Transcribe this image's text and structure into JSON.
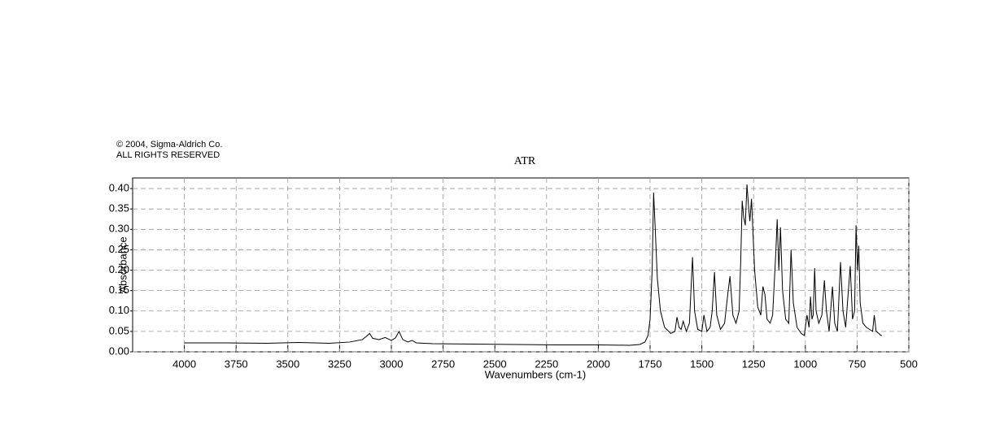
{
  "chart_data": {
    "type": "line",
    "title": "ATR",
    "copyright": [
      "© 2004, Sigma-Aldrich Co.",
      "ALL RIGHTS RESERVED"
    ],
    "x_label": "Wavenumbers (cm-1)",
    "y_label": "Absorbance",
    "xlim": [
      4250,
      500
    ],
    "ylim": [
      0,
      0.426
    ],
    "xticks": [
      4000,
      3750,
      3500,
      3250,
      3000,
      2750,
      2500,
      2250,
      2000,
      1750,
      1500,
      1250,
      1000,
      750,
      500
    ],
    "yticks": [
      {
        "value": 0,
        "label": "0.00"
      },
      0.05,
      {
        "value": 0.1,
        "label": "0.10"
      },
      0.15,
      {
        "value": 0.2,
        "label": "0.20"
      },
      0.25,
      {
        "value": 0.3,
        "label": "0.30"
      },
      0.35,
      {
        "value": 0.4,
        "label": "0.40"
      }
    ],
    "grid": true,
    "series": [
      {
        "name": "ATR",
        "color": "#000000",
        "x": [
          4000,
          3800,
          3600,
          3450,
          3300,
          3200,
          3140,
          3120,
          3105,
          3090,
          3060,
          3030,
          3000,
          2980,
          2963,
          2945,
          2920,
          2900,
          2880,
          2800,
          2600,
          2400,
          2200,
          2000,
          1850,
          1800,
          1775,
          1760,
          1750,
          1740,
          1733,
          1725,
          1715,
          1700,
          1680,
          1650,
          1630,
          1620,
          1610,
          1600,
          1590,
          1575,
          1560,
          1545,
          1535,
          1520,
          1500,
          1490,
          1475,
          1460,
          1450,
          1439,
          1428,
          1410,
          1390,
          1375,
          1364,
          1350,
          1335,
          1320,
          1312,
          1305,
          1298,
          1290,
          1282,
          1275,
          1268,
          1260,
          1245,
          1230,
          1215,
          1205,
          1195,
          1185,
          1170,
          1158,
          1148,
          1142,
          1136,
          1128,
          1120,
          1110,
          1095,
          1080,
          1069,
          1058,
          1040,
          1020,
          1005,
          992,
          982,
          975,
          968,
          962,
          955,
          948,
          935,
          920,
          908,
          898,
          885,
          869,
          858,
          845,
          830,
          818,
          805,
          795,
          783,
          772,
          762,
          755,
          748,
          742,
          735,
          722,
          705,
          690,
          675,
          667,
          658,
          645,
          635,
          630
        ],
        "values": [
          0.022,
          0.022,
          0.021,
          0.023,
          0.021,
          0.024,
          0.03,
          0.038,
          0.045,
          0.033,
          0.03,
          0.035,
          0.028,
          0.034,
          0.05,
          0.03,
          0.024,
          0.028,
          0.022,
          0.02,
          0.019,
          0.018,
          0.017,
          0.017,
          0.016,
          0.018,
          0.024,
          0.04,
          0.08,
          0.2,
          0.39,
          0.3,
          0.18,
          0.1,
          0.06,
          0.045,
          0.05,
          0.085,
          0.06,
          0.055,
          0.075,
          0.05,
          0.07,
          0.232,
          0.1,
          0.055,
          0.05,
          0.09,
          0.05,
          0.06,
          0.1,
          0.195,
          0.09,
          0.055,
          0.07,
          0.14,
          0.185,
          0.09,
          0.07,
          0.1,
          0.225,
          0.37,
          0.33,
          0.31,
          0.41,
          0.36,
          0.32,
          0.375,
          0.2,
          0.11,
          0.09,
          0.16,
          0.14,
          0.08,
          0.07,
          0.09,
          0.19,
          0.25,
          0.325,
          0.2,
          0.305,
          0.15,
          0.08,
          0.07,
          0.25,
          0.12,
          0.06,
          0.045,
          0.04,
          0.09,
          0.06,
          0.135,
          0.08,
          0.09,
          0.205,
          0.1,
          0.07,
          0.09,
          0.175,
          0.1,
          0.05,
          0.16,
          0.07,
          0.05,
          0.22,
          0.1,
          0.06,
          0.13,
          0.21,
          0.08,
          0.1,
          0.31,
          0.2,
          0.26,
          0.12,
          0.07,
          0.06,
          0.055,
          0.05,
          0.09,
          0.05,
          0.045,
          0.04,
          0.04
        ]
      }
    ]
  }
}
